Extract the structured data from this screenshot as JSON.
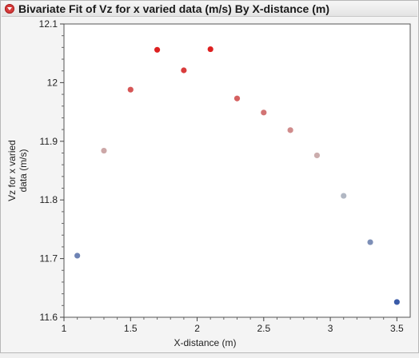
{
  "window": {
    "title": "Bivariate Fit of Vz for x varied data (m/s) By X-distance (m)"
  },
  "chart_data": {
    "type": "scatter",
    "xlabel": "X-distance (m)",
    "ylabel_lines": [
      "Vz for x varied",
      "data (m/s)"
    ],
    "xlim": [
      1,
      3.6
    ],
    "ylim": [
      11.6,
      12.1
    ],
    "xticks": [
      1,
      1.5,
      2,
      2.5,
      3,
      3.5
    ],
    "xtick_labels": [
      "1",
      "1.5",
      "2",
      "2.5",
      "3",
      "3.5"
    ],
    "yticks": [
      11.6,
      11.7,
      11.8,
      11.9,
      12,
      12.1
    ],
    "ytick_labels": [
      "11.6",
      "11.7",
      "11.8",
      "11.9",
      "12",
      "12.1"
    ],
    "grid": false,
    "color_scale": {
      "low": "#3a5ba8",
      "mid": "#c8c8c8",
      "high": "#dd2020"
    },
    "points": [
      {
        "x": 1.1,
        "y": 11.705
      },
      {
        "x": 1.3,
        "y": 11.884
      },
      {
        "x": 1.5,
        "y": 11.988
      },
      {
        "x": 1.7,
        "y": 12.056
      },
      {
        "x": 1.9,
        "y": 12.021
      },
      {
        "x": 2.1,
        "y": 12.057
      },
      {
        "x": 2.3,
        "y": 11.973
      },
      {
        "x": 2.5,
        "y": 11.949
      },
      {
        "x": 2.7,
        "y": 11.919
      },
      {
        "x": 2.9,
        "y": 11.876
      },
      {
        "x": 3.1,
        "y": 11.807
      },
      {
        "x": 3.3,
        "y": 11.728
      },
      {
        "x": 3.5,
        "y": 11.626
      }
    ]
  }
}
